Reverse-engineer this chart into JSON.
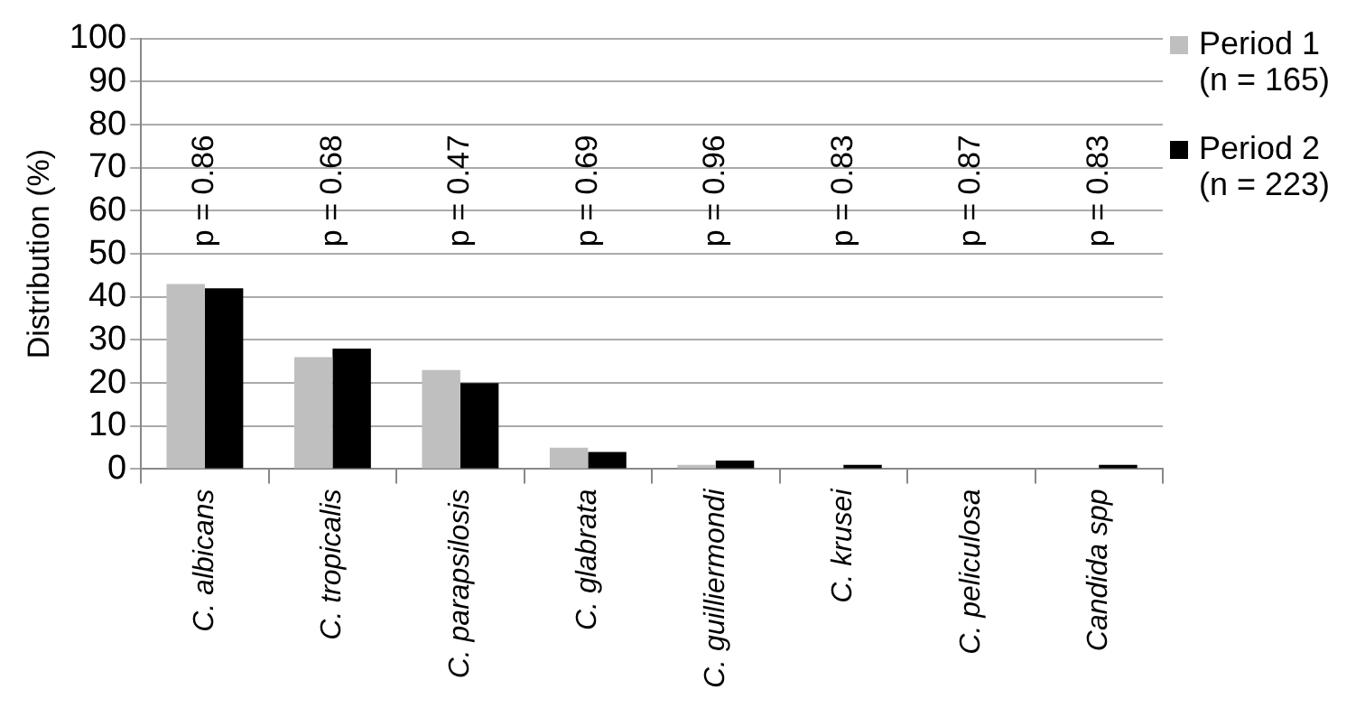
{
  "chart_data": {
    "type": "bar",
    "ylabel": "Distribution (%)",
    "categories": [
      "C. albicans",
      "C. tropicalis",
      "C. parapsilosis",
      "C. glabrata",
      "C. guilliermondi",
      "C. krusei",
      "C. peliculosa",
      "Candida spp"
    ],
    "series": [
      {
        "name": "Period 1\n(n = 165)",
        "color": "#bfbfbf",
        "values": [
          43,
          26,
          23,
          5,
          1,
          0,
          0,
          0
        ]
      },
      {
        "name": "Period 2\n(n = 223)",
        "color": "#000000",
        "values": [
          42,
          28,
          20,
          4,
          2,
          1,
          0,
          1
        ]
      }
    ],
    "annotations": [
      "p = 0.86",
      "p = 0.68",
      "p = 0.47",
      "p = 0.69",
      "p = 0.96",
      "p = 0.83",
      "p = 0.87",
      "p = 0.83"
    ],
    "ylim": [
      0,
      100
    ],
    "yticks": [
      0,
      10,
      20,
      30,
      40,
      50,
      60,
      70,
      80,
      90,
      100
    ],
    "grid": "y",
    "legend": "right"
  }
}
